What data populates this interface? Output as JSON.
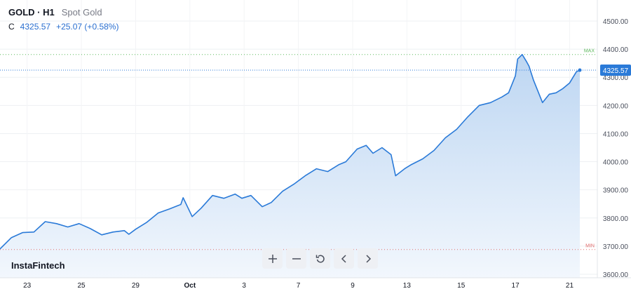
{
  "header": {
    "symbol": "GOLD · H1",
    "description": "Spot Gold",
    "close_prefix": "C",
    "close_value": "4325.57",
    "change": "+25.07 (+0.58%)"
  },
  "brand": "InstaFintech",
  "controls": {
    "buttons": [
      {
        "name": "zoom-in-button",
        "icon": "plus-icon"
      },
      {
        "name": "zoom-out-button",
        "icon": "minus-icon"
      },
      {
        "name": "reset-button",
        "icon": "reset-icon"
      },
      {
        "name": "scroll-left-button",
        "icon": "chevron-left-icon"
      },
      {
        "name": "scroll-right-button",
        "icon": "chevron-right-icon"
      }
    ]
  },
  "colors": {
    "line": "#2a7ad8",
    "area_top": "#bdd6f2",
    "area_bottom": "#f2f7fd",
    "max_line": "#5cb85c",
    "min_line": "#e06c6c",
    "last_label_bg": "#2a7ad8"
  },
  "chart_data": {
    "type": "area",
    "title": "",
    "xlabel": "",
    "ylabel": "",
    "ylim": [
      3580,
      4550
    ],
    "y_ticks": [
      "4500.00",
      "4400.00",
      "4300.00",
      "4200.00",
      "4100.00",
      "4000.00",
      "3900.00",
      "3800.00",
      "3700.00",
      "3600.00"
    ],
    "y_tick_values": [
      4500,
      4400,
      4300,
      4200,
      4100,
      4000,
      3900,
      3800,
      3700,
      3600
    ],
    "x_ticks": [
      "23",
      "25",
      "29",
      "Oct",
      "3",
      "7",
      "9",
      "13",
      "15",
      "17",
      "21"
    ],
    "x_tick_dates": [
      "2025-09-23",
      "2025-09-25",
      "2025-09-29",
      "2025-10-01",
      "2025-10-03",
      "2025-10-07",
      "2025-10-09",
      "2025-10-13",
      "2025-10-15",
      "2025-10-17",
      "2025-10-21"
    ],
    "max_label": "MAX",
    "max_value": 4381,
    "min_label": "MIN",
    "min_value": 3688,
    "last_value_label": "4325.57",
    "last_value": 4325.57,
    "series": [
      {
        "x": [
          "2025-09-22 00:00",
          "2025-09-22 10:00",
          "2025-09-22 20:00",
          "2025-09-23 06:00",
          "2025-09-23 16:00",
          "2025-09-24 02:00",
          "2025-09-24 12:00",
          "2025-09-24 22:00",
          "2025-09-25 08:00",
          "2025-09-25 18:00",
          "2025-09-26 04:00",
          "2025-09-26 14:00",
          "2025-09-26 18:00",
          "2025-09-29 00:00",
          "2025-09-29 10:00",
          "2025-09-29 20:00",
          "2025-09-30 06:00",
          "2025-09-30 16:00",
          "2025-09-30 18:00",
          "2025-10-01 02:00",
          "2025-10-01 10:00",
          "2025-10-01 20:00",
          "2025-10-02 06:00",
          "2025-10-02 16:00",
          "2025-10-02 22:00",
          "2025-10-03 06:00",
          "2025-10-03 16:00",
          "2025-10-06 00:00",
          "2025-10-06 10:00",
          "2025-10-06 20:00",
          "2025-10-07 06:00",
          "2025-10-07 16:00",
          "2025-10-08 02:00",
          "2025-10-08 12:00",
          "2025-10-08 18:00",
          "2025-10-09 04:00",
          "2025-10-09 12:00",
          "2025-10-09 18:00",
          "2025-10-10 02:00",
          "2025-10-10 10:00",
          "2025-10-10 14:00",
          "2025-10-10 22:00",
          "2025-10-13 04:00",
          "2025-10-13 14:00",
          "2025-10-14 00:00",
          "2025-10-14 10:00",
          "2025-10-14 20:00",
          "2025-10-15 06:00",
          "2025-10-15 16:00",
          "2025-10-16 02:00",
          "2025-10-16 12:00",
          "2025-10-16 18:00",
          "2025-10-17 00:00",
          "2025-10-17 02:00",
          "2025-10-17 06:00",
          "2025-10-17 10:00",
          "2025-10-17 12:00",
          "2025-10-17 16:00",
          "2025-10-20 00:00",
          "2025-10-20 06:00",
          "2025-10-20 12:00",
          "2025-10-20 18:00",
          "2025-10-21 00:00",
          "2025-10-21 03:00",
          "2025-10-21 06:00",
          "2025-10-21 09:00"
        ],
        "y": [
          3690,
          3730,
          3748,
          3750,
          3787,
          3780,
          3768,
          3780,
          3762,
          3740,
          3750,
          3755,
          3742,
          3760,
          3785,
          3818,
          3832,
          3848,
          3872,
          3805,
          3835,
          3880,
          3870,
          3885,
          3870,
          3880,
          3840,
          3855,
          3895,
          3920,
          3950,
          3975,
          3965,
          3990,
          4000,
          4045,
          4058,
          4030,
          4050,
          4025,
          3950,
          3975,
          3990,
          4010,
          4040,
          4085,
          4115,
          4160,
          4200,
          4210,
          4230,
          4245,
          4305,
          4365,
          4381,
          4355,
          4340,
          4290,
          4210,
          4240,
          4245,
          4260,
          4280,
          4300,
          4320,
          4325.57
        ]
      }
    ]
  }
}
